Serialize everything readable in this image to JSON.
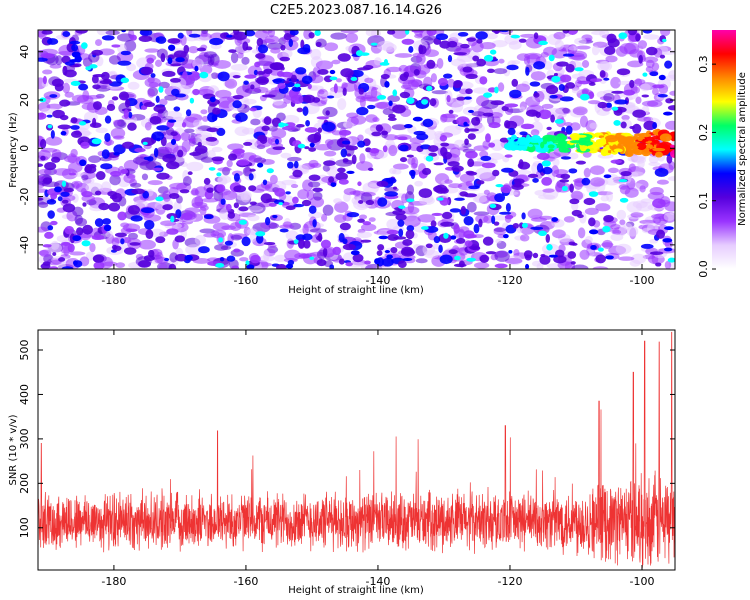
{
  "title": "C2E5.2023.087.16.14.G26",
  "chart_data": [
    {
      "type": "heatmap",
      "xlabel": "Height of straight line (km)",
      "ylabel": "Frequency (Hz)",
      "xlim": [
        -191.5,
        -95
      ],
      "ylim": [
        -50,
        49
      ],
      "xticks": [
        -180,
        -160,
        -140,
        -120,
        -100
      ],
      "xtick_labels": [
        "-180",
        "-160",
        "-140",
        "-120",
        "-100"
      ],
      "yticks": [
        -40,
        -20,
        0,
        20,
        40
      ],
      "ytick_labels": [
        "-40",
        "-20",
        "0",
        "20",
        "40"
      ],
      "colormap": [
        "#ffffff",
        "#e6ccff",
        "#9933ff",
        "#5500dd",
        "#0000ff",
        "#00ffff",
        "#00ff66",
        "#ffff00",
        "#ff8800",
        "#ff0000",
        "#ff00aa"
      ],
      "colorbar": {
        "label": "Normalized spectral amplitude",
        "range": [
          0,
          0.35
        ],
        "ticks": [
          0.0,
          0.1,
          0.2,
          0.3
        ],
        "tick_labels": [
          "0.0",
          "0.1",
          "0.2",
          "0.3"
        ]
      },
      "features": [
        {
          "description_of_signal": "enhanced band near 0 Hz",
          "x_range": [
            -120,
            -95
          ],
          "center_frequency": 2
        }
      ],
      "grid": false
    },
    {
      "type": "line",
      "series": [
        {
          "color": "#ee3333"
        }
      ],
      "xlabel": "Height of straight line (km)",
      "ylabel": "SNR (10 * v/v)",
      "xlim": [
        -191.5,
        -95
      ],
      "ylim": [
        5,
        545
      ],
      "xticks": [
        -180,
        -160,
        -140,
        -120,
        -100
      ],
      "xtick_labels": [
        "-180",
        "-160",
        "-140",
        "-120",
        "-100"
      ],
      "yticks": [
        100,
        200,
        300,
        400,
        500
      ],
      "ytick_labels": [
        "100",
        "200",
        "300",
        "400",
        "500"
      ],
      "baseline_mean": 115,
      "noise_level": 75,
      "peaks": [
        {
          "x": -191,
          "y": 290
        },
        {
          "x": -164.3,
          "y": 318
        },
        {
          "x": -120.7,
          "y": 330
        },
        {
          "x": -106.5,
          "y": 385
        },
        {
          "x": -101.3,
          "y": 450
        },
        {
          "x": -99.6,
          "y": 520
        },
        {
          "x": -97.4,
          "y": 518
        },
        {
          "x": -95.5,
          "y": 540
        }
      ],
      "grid": false
    }
  ]
}
